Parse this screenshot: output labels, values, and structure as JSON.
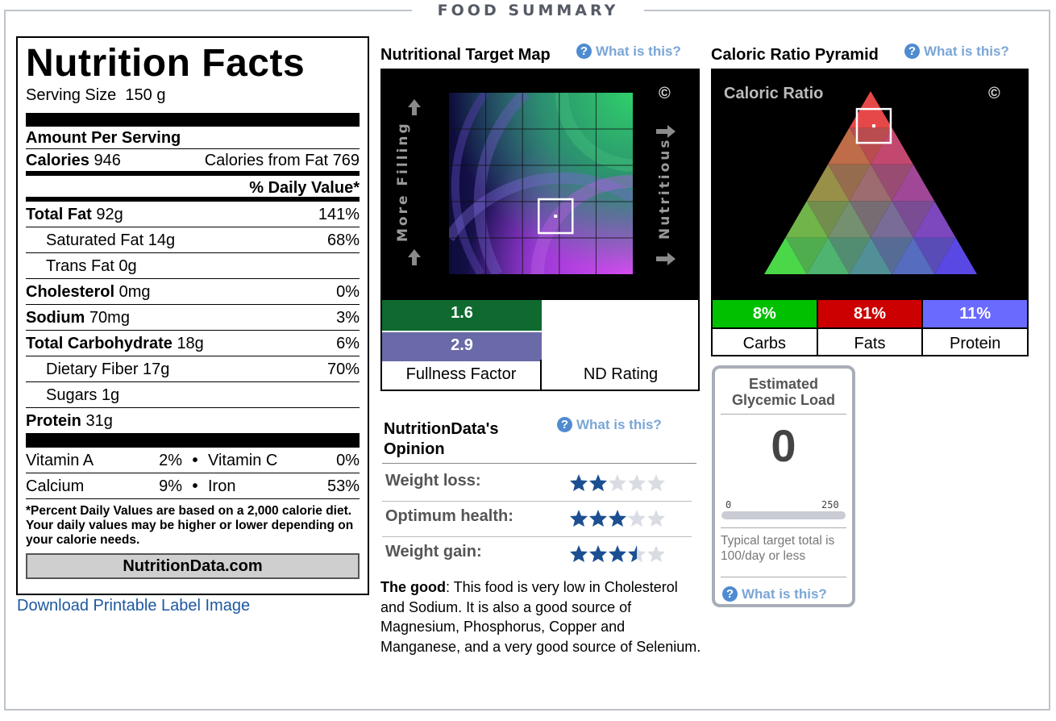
{
  "section_title": "FOOD SUMMARY",
  "label": {
    "title": "Nutrition Facts",
    "serving_size_label": "Serving Size",
    "serving_size_value": "150 g",
    "amount_per_serving": "Amount Per Serving",
    "calories_label": "Calories",
    "calories_value": "946",
    "calories_from_fat": "Calories from Fat 769",
    "daily_value_header": "% Daily Value*",
    "rows": [
      {
        "bold_label": "Total Fat",
        "amount": "92g",
        "pct": "141%"
      },
      {
        "label": "Saturated Fat",
        "amount": "14g",
        "pct": "68%"
      },
      {
        "label": "Trans Fat",
        "amount": "0g",
        "pct": ""
      },
      {
        "bold_label": "Cholesterol",
        "amount": "0mg",
        "pct": "0%"
      },
      {
        "bold_label": "Sodium",
        "amount": "70mg",
        "pct": "3%"
      },
      {
        "bold_label": "Total Carbohydrate",
        "amount": "18g",
        "pct": "6%"
      },
      {
        "label": "Dietary Fiber",
        "amount": "17g",
        "pct": "70%"
      },
      {
        "label": "Sugars",
        "amount": "1g",
        "pct": ""
      },
      {
        "bold_label": "Protein",
        "amount": "31g",
        "pct": ""
      }
    ],
    "vitamins": [
      {
        "a": "Vitamin A",
        "a_pct": "2%",
        "b": "Vitamin C",
        "b_pct": "0%"
      },
      {
        "a": "Calcium",
        "a_pct": "9%",
        "b": "Iron",
        "b_pct": "53%"
      }
    ],
    "dot": "•",
    "footnote": "*Percent Daily Values are based on a 2,000 calorie diet. Your daily values may be higher or lower depending on your calorie needs.",
    "brand": "NutritionData.com",
    "download_link": "Download Printable Label Image"
  },
  "target_map": {
    "title": "Nutritional Target Map",
    "what_is_this": "What is this?",
    "left_label": "More Filling",
    "right_label": "Nutritious",
    "copyright": "©",
    "fullness_value": "1.6",
    "nd_value": "2.9",
    "fullness_label": "Fullness Factor",
    "nd_label": "ND Rating",
    "marker": {
      "fullness": 1.6,
      "nd_rating": 2.9
    }
  },
  "pyramid": {
    "title": "Caloric Ratio Pyramid",
    "what_is_this": "What is this?",
    "inner_title": "Caloric Ratio",
    "copyright": "©",
    "columns": [
      {
        "label": "Carbs",
        "value": "8%",
        "color": "#00c000"
      },
      {
        "label": "Fats",
        "value": "81%",
        "color": "#cc0000"
      },
      {
        "label": "Protein",
        "value": "11%",
        "color": "#6a6aff"
      }
    ]
  },
  "opinion": {
    "title_line1": "NutritionData's",
    "title_line2": "Opinion",
    "what_is_this": "What is this?",
    "ratings": [
      {
        "label": "Weight loss:",
        "stars": 2
      },
      {
        "label": "Optimum health:",
        "stars": 3
      },
      {
        "label": "Weight gain:",
        "stars": 3.5
      }
    ],
    "good_label": "The good",
    "good_text": ": This food is very low in Cholesterol and Sodium. It is also a good source of Magnesium, Phosphorus, Copper and Manganese, and a very good source of Selenium."
  },
  "glycemic": {
    "title_line1": "Estimated",
    "title_line2": "Glycemic Load",
    "value": "0",
    "scale_min": "0",
    "scale_max": "250",
    "note": "Typical target total is 100/day or less",
    "what_is_this": "What is this?"
  },
  "colors": {
    "star_full": "#1c4f91",
    "star_empty": "#d9dce2",
    "link": "#1c58a0"
  }
}
